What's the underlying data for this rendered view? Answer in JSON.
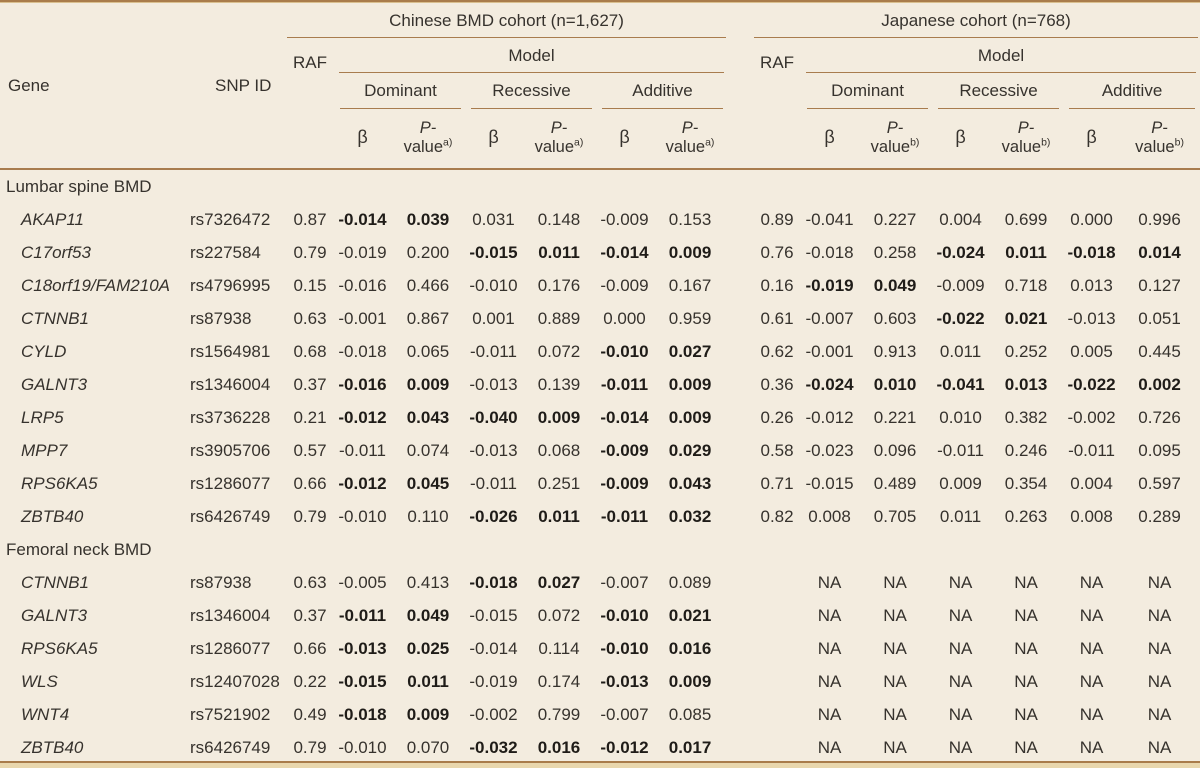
{
  "table": {
    "headers": {
      "gene": "Gene",
      "snp": "SNP ID",
      "raf": "RAF",
      "model": "Model",
      "beta": "β",
      "p_prefix": "P-",
      "p_word": "value"
    },
    "cohorts": [
      {
        "label": "Chinese BMD cohort (n=1,627)",
        "p_sup": "a)"
      },
      {
        "label": "Japanese cohort (n=768)",
        "p_sup": "b)"
      }
    ],
    "models": [
      "Dominant",
      "Recessive",
      "Additive"
    ],
    "colors": {
      "rule": "#a87c4e",
      "background": "#f3ecdf",
      "text": "#36322d"
    },
    "sections": [
      {
        "label": "Lumbar spine BMD",
        "rows": [
          {
            "gene": "AKAP11",
            "snp": "rs7326472",
            "cells": [
              "0.87",
              "-0.014",
              "0.039",
              "0.031",
              "0.148",
              "-0.009",
              "0.153",
              "0.89",
              "-0.041",
              "0.227",
              "0.004",
              "0.699",
              "0.000",
              "0.996"
            ],
            "bold": [
              0,
              1,
              1,
              0,
              0,
              0,
              0,
              0,
              0,
              0,
              0,
              0,
              0,
              0
            ]
          },
          {
            "gene": "C17orf53",
            "snp": "rs227584",
            "cells": [
              "0.79",
              "-0.019",
              "0.200",
              "-0.015",
              "0.011",
              "-0.014",
              "0.009",
              "0.76",
              "-0.018",
              "0.258",
              "-0.024",
              "0.011",
              "-0.018",
              "0.014"
            ],
            "bold": [
              0,
              0,
              0,
              1,
              1,
              1,
              1,
              0,
              0,
              0,
              1,
              1,
              1,
              1
            ]
          },
          {
            "gene": "C18orf19/FAM210A",
            "snp": "rs4796995",
            "cells": [
              "0.15",
              "-0.016",
              "0.466",
              "-0.010",
              "0.176",
              "-0.009",
              "0.167",
              "0.16",
              "-0.019",
              "0.049",
              "-0.009",
              "0.718",
              "0.013",
              "0.127"
            ],
            "bold": [
              0,
              0,
              0,
              0,
              0,
              0,
              0,
              0,
              1,
              1,
              0,
              0,
              0,
              0
            ]
          },
          {
            "gene": "CTNNB1",
            "snp": "rs87938",
            "cells": [
              "0.63",
              "-0.001",
              "0.867",
              "0.001",
              "0.889",
              "0.000",
              "0.959",
              "0.61",
              "-0.007",
              "0.603",
              "-0.022",
              "0.021",
              "-0.013",
              "0.051"
            ],
            "bold": [
              0,
              0,
              0,
              0,
              0,
              0,
              0,
              0,
              0,
              0,
              1,
              1,
              0,
              0
            ]
          },
          {
            "gene": "CYLD",
            "snp": "rs1564981",
            "cells": [
              "0.68",
              "-0.018",
              "0.065",
              "-0.011",
              "0.072",
              "-0.010",
              "0.027",
              "0.62",
              "-0.001",
              "0.913",
              "0.011",
              "0.252",
              "0.005",
              "0.445"
            ],
            "bold": [
              0,
              0,
              0,
              0,
              0,
              1,
              1,
              0,
              0,
              0,
              0,
              0,
              0,
              0
            ]
          },
          {
            "gene": "GALNT3",
            "snp": "rs1346004",
            "cells": [
              "0.37",
              "-0.016",
              "0.009",
              "-0.013",
              "0.139",
              "-0.011",
              "0.009",
              "0.36",
              "-0.024",
              "0.010",
              "-0.041",
              "0.013",
              "-0.022",
              "0.002"
            ],
            "bold": [
              0,
              1,
              1,
              0,
              0,
              1,
              1,
              0,
              1,
              1,
              1,
              1,
              1,
              1
            ]
          },
          {
            "gene": "LRP5",
            "snp": "rs3736228",
            "cells": [
              "0.21",
              "-0.012",
              "0.043",
              "-0.040",
              "0.009",
              "-0.014",
              "0.009",
              "0.26",
              "-0.012",
              "0.221",
              "0.010",
              "0.382",
              "-0.002",
              "0.726"
            ],
            "bold": [
              0,
              1,
              1,
              1,
              1,
              1,
              1,
              0,
              0,
              0,
              0,
              0,
              0,
              0
            ]
          },
          {
            "gene": "MPP7",
            "snp": "rs3905706",
            "cells": [
              "0.57",
              "-0.011",
              "0.074",
              "-0.013",
              "0.068",
              "-0.009",
              "0.029",
              "0.58",
              "-0.023",
              "0.096",
              "-0.011",
              "0.246",
              "-0.011",
              "0.095"
            ],
            "bold": [
              0,
              0,
              0,
              0,
              0,
              1,
              1,
              0,
              0,
              0,
              0,
              0,
              0,
              0
            ]
          },
          {
            "gene": "RPS6KA5",
            "snp": "rs1286077",
            "cells": [
              "0.66",
              "-0.012",
              "0.045",
              "-0.011",
              "0.251",
              "-0.009",
              "0.043",
              "0.71",
              "-0.015",
              "0.489",
              "0.009",
              "0.354",
              "0.004",
              "0.597"
            ],
            "bold": [
              0,
              1,
              1,
              0,
              0,
              1,
              1,
              0,
              0,
              0,
              0,
              0,
              0,
              0
            ]
          },
          {
            "gene": "ZBTB40",
            "snp": "rs6426749",
            "cells": [
              "0.79",
              "-0.010",
              "0.110",
              "-0.026",
              "0.011",
              "-0.011",
              "0.032",
              "0.82",
              "0.008",
              "0.705",
              "0.011",
              "0.263",
              "0.008",
              "0.289"
            ],
            "bold": [
              0,
              0,
              0,
              1,
              1,
              1,
              1,
              0,
              0,
              0,
              0,
              0,
              0,
              0
            ]
          }
        ]
      },
      {
        "label": "Femoral neck BMD",
        "rows": [
          {
            "gene": "CTNNB1",
            "snp": "rs87938",
            "cells": [
              "0.63",
              "-0.005",
              "0.413",
              "-0.018",
              "0.027",
              "-0.007",
              "0.089",
              "",
              "NA",
              "NA",
              "NA",
              "NA",
              "NA",
              "NA"
            ],
            "bold": [
              0,
              0,
              0,
              1,
              1,
              0,
              0,
              0,
              0,
              0,
              0,
              0,
              0,
              0
            ]
          },
          {
            "gene": "GALNT3",
            "snp": "rs1346004",
            "cells": [
              "0.37",
              "-0.011",
              "0.049",
              "-0.015",
              "0.072",
              "-0.010",
              "0.021",
              "",
              "NA",
              "NA",
              "NA",
              "NA",
              "NA",
              "NA"
            ],
            "bold": [
              0,
              1,
              1,
              0,
              0,
              1,
              1,
              0,
              0,
              0,
              0,
              0,
              0,
              0
            ]
          },
          {
            "gene": "RPS6KA5",
            "snp": "rs1286077",
            "cells": [
              "0.66",
              "-0.013",
              "0.025",
              "-0.014",
              "0.114",
              "-0.010",
              "0.016",
              "",
              "NA",
              "NA",
              "NA",
              "NA",
              "NA",
              "NA"
            ],
            "bold": [
              0,
              1,
              1,
              0,
              0,
              1,
              1,
              0,
              0,
              0,
              0,
              0,
              0,
              0
            ]
          },
          {
            "gene": "WLS",
            "snp": "rs12407028",
            "cells": [
              "0.22",
              "-0.015",
              "0.011",
              "-0.019",
              "0.174",
              "-0.013",
              "0.009",
              "",
              "NA",
              "NA",
              "NA",
              "NA",
              "NA",
              "NA"
            ],
            "bold": [
              0,
              1,
              1,
              0,
              0,
              1,
              1,
              0,
              0,
              0,
              0,
              0,
              0,
              0
            ]
          },
          {
            "gene": "WNT4",
            "snp": "rs7521902",
            "cells": [
              "0.49",
              "-0.018",
              "0.009",
              "-0.002",
              "0.799",
              "-0.007",
              "0.085",
              "",
              "NA",
              "NA",
              "NA",
              "NA",
              "NA",
              "NA"
            ],
            "bold": [
              0,
              1,
              1,
              0,
              0,
              0,
              0,
              0,
              0,
              0,
              0,
              0,
              0,
              0
            ]
          },
          {
            "gene": "ZBTB40",
            "snp": "rs6426749",
            "cells": [
              "0.79",
              "-0.010",
              "0.070",
              "-0.032",
              "0.016",
              "-0.012",
              "0.017",
              "",
              "NA",
              "NA",
              "NA",
              "NA",
              "NA",
              "NA"
            ],
            "bold": [
              0,
              0,
              0,
              1,
              1,
              1,
              1,
              0,
              0,
              0,
              0,
              0,
              0,
              0
            ]
          }
        ]
      }
    ]
  }
}
